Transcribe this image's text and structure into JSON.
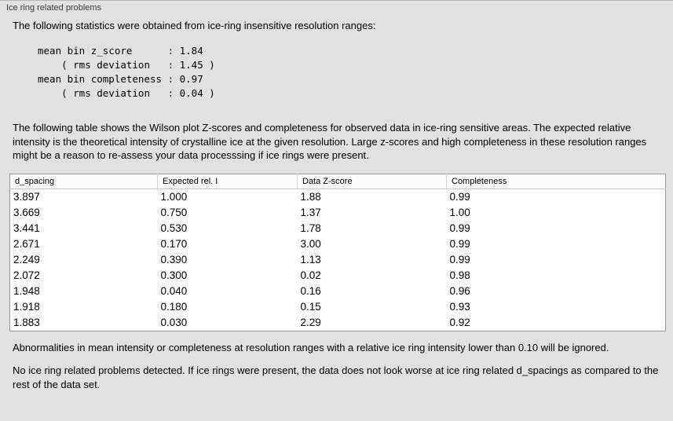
{
  "panel": {
    "title": "Ice ring related problems"
  },
  "intro": {
    "text": "The following statistics were obtained from ice-ring insensitive resolution ranges:"
  },
  "stats_block": {
    "lines": [
      "mean bin z_score      : 1.84",
      "    ( rms deviation   : 1.45 )",
      "mean bin completeness : 0.97",
      "    ( rms deviation   : 0.04 )"
    ]
  },
  "wilson_paragraph": {
    "text": "The following table shows the Wilson plot Z-scores and completeness for observed data in ice-ring sensitive areas. The expected relative intensity is the theoretical intensity of crystalline ice at the given resolution. Large z-scores and high completeness in these resolution ranges might be a reason to re-assess your data processsing if ice rings were present."
  },
  "table": {
    "headers": [
      "d_spacing",
      "Expected rel. I",
      "Data Z-score",
      "Completeness"
    ],
    "rows": [
      [
        "3.897",
        "1.000",
        "1.88",
        "0.99"
      ],
      [
        "3.669",
        "0.750",
        "1.37",
        "1.00"
      ],
      [
        "3.441",
        "0.530",
        "1.78",
        "0.99"
      ],
      [
        "2.671",
        "0.170",
        "3.00",
        "0.99"
      ],
      [
        "2.249",
        "0.390",
        "1.13",
        "0.99"
      ],
      [
        "2.072",
        "0.300",
        "0.02",
        "0.98"
      ],
      [
        "1.948",
        "0.040",
        "0.16",
        "0.96"
      ],
      [
        "1.918",
        "0.180",
        "0.15",
        "0.93"
      ],
      [
        "1.883",
        "0.030",
        "2.29",
        "0.92"
      ]
    ]
  },
  "abnormalities_note": {
    "text": "Abnormalities in mean intensity or completeness at resolution ranges with a relative ice ring intensity lower than 0.10 will be ignored."
  },
  "conclusion": {
    "text": "No ice ring related problems detected. If ice rings were present, the data does not look worse at ice ring related d_spacings as compared to the rest of the data set."
  }
}
